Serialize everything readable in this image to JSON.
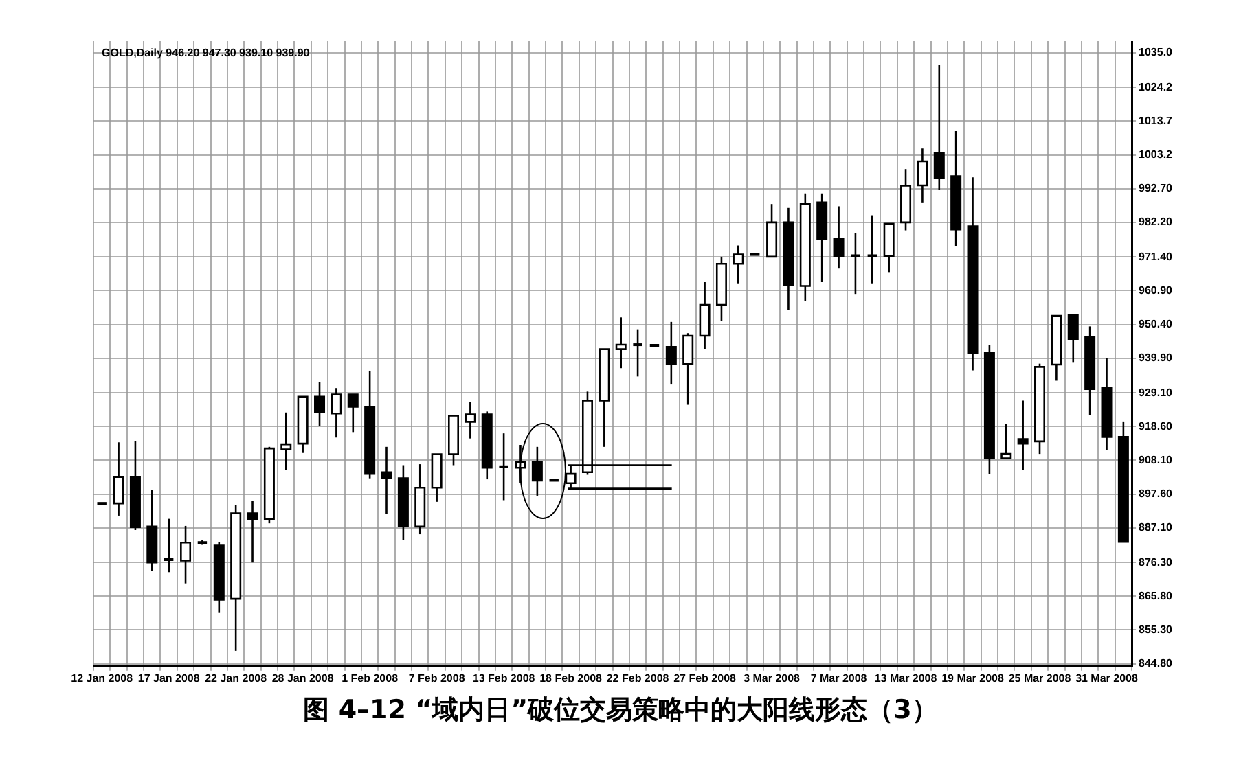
{
  "chart_data": {
    "type": "candlestick",
    "title": "图 4–12 “域内日”破位交易策略中的大阳线形态（3）",
    "subtitle": "GOLD,Daily 946.20 947.30 939.10 939.90",
    "categories": [
      "12 Jan 2008",
      null,
      null,
      null,
      "17 Jan 2008",
      null,
      null,
      null,
      "22 Jan 2008",
      null,
      null,
      null,
      "28 Jan 2008",
      null,
      null,
      null,
      "1 Feb 2008",
      null,
      null,
      null,
      "7 Feb 2008",
      null,
      null,
      null,
      "13 Feb 2008",
      null,
      null,
      null,
      "18 Feb 2008",
      null,
      null,
      null,
      "22 Feb 2008",
      null,
      null,
      null,
      "27 Feb 2008",
      null,
      null,
      null,
      "3 Mar 2008",
      null,
      null,
      null,
      "7 Mar 2008",
      null,
      null,
      null,
      "13 Mar 2008",
      null,
      null,
      null,
      "19 Mar 2008",
      null,
      null,
      null,
      "25 Mar 2008",
      null,
      null,
      null,
      "31 Mar 2008",
      null
    ],
    "ohlc": [
      [
        894.7,
        894.7,
        894.7,
        894.7
      ],
      [
        894.7,
        913.7,
        890.9,
        902.9
      ],
      [
        902.9,
        914.0,
        886.4,
        887.3
      ],
      [
        887.5,
        898.9,
        873.7,
        876.3
      ],
      [
        877.2,
        889.9,
        873.3,
        877.2
      ],
      [
        876.9,
        887.7,
        869.8,
        882.5
      ],
      [
        882.5,
        883.2,
        881.8,
        882.5
      ],
      [
        881.6,
        882.7,
        860.6,
        864.7
      ],
      [
        865.0,
        894.3,
        848.8,
        891.6
      ],
      [
        891.6,
        895.4,
        876.3,
        889.9
      ],
      [
        889.9,
        912.3,
        888.5,
        911.8
      ],
      [
        911.5,
        923.0,
        905.0,
        913.1
      ],
      [
        913.3,
        927.9,
        910.4,
        927.9
      ],
      [
        927.9,
        932.4,
        918.7,
        923.0
      ],
      [
        922.7,
        930.6,
        915.2,
        928.6
      ],
      [
        928.6,
        928.6,
        916.9,
        924.8
      ],
      [
        924.8,
        936.0,
        902.5,
        903.9
      ],
      [
        904.4,
        912.3,
        891.5,
        902.7
      ],
      [
        902.5,
        906.6,
        883.4,
        887.6
      ],
      [
        887.5,
        906.9,
        885.1,
        899.6
      ],
      [
        899.6,
        910.0,
        895.2,
        910.0
      ],
      [
        910.0,
        922.0,
        906.6,
        922.0
      ],
      [
        920.1,
        926.2,
        914.9,
        922.4
      ],
      [
        922.4,
        923.3,
        902.2,
        905.8
      ],
      [
        906.1,
        916.5,
        895.7,
        906.1
      ],
      [
        905.8,
        912.9,
        901.0,
        907.5
      ],
      [
        907.5,
        912.3,
        897.1,
        901.8
      ],
      [
        901.9,
        901.9,
        901.9,
        901.9
      ],
      [
        901.0,
        906.6,
        899.3,
        903.9
      ],
      [
        904.4,
        929.5,
        903.6,
        926.7
      ],
      [
        926.7,
        942.7,
        912.3,
        942.7
      ],
      [
        942.7,
        952.6,
        936.8,
        944.1
      ],
      [
        944.1,
        948.9,
        934.2,
        944.1
      ],
      [
        943.9,
        943.9,
        943.9,
        943.9
      ],
      [
        943.4,
        951.2,
        931.7,
        938.1
      ],
      [
        938.1,
        947.7,
        925.4,
        946.9
      ],
      [
        946.9,
        963.7,
        942.7,
        956.5
      ],
      [
        956.5,
        971.5,
        951.4,
        969.3
      ],
      [
        969.3,
        975.0,
        963.2,
        972.2
      ],
      [
        972.2,
        972.2,
        972.2,
        972.2
      ],
      [
        971.5,
        987.9,
        971.5,
        982.2
      ],
      [
        982.2,
        986.7,
        954.8,
        962.7
      ],
      [
        962.4,
        991.2,
        957.7,
        987.9
      ],
      [
        988.4,
        991.2,
        963.7,
        977.1
      ],
      [
        977.1,
        987.2,
        967.8,
        971.6
      ],
      [
        971.8,
        978.9,
        959.9,
        971.8
      ],
      [
        971.8,
        984.4,
        963.2,
        971.8
      ],
      [
        971.6,
        981.8,
        966.7,
        981.8
      ],
      [
        982.2,
        998.8,
        979.7,
        993.6
      ],
      [
        993.7,
        1005.2,
        988.4,
        1001.2
      ],
      [
        1003.8,
        1031.2,
        992.3,
        995.9
      ],
      [
        996.6,
        1010.6,
        974.7,
        980.0
      ],
      [
        981.0,
        996.2,
        936.1,
        941.4
      ],
      [
        941.5,
        944.0,
        903.9,
        908.7
      ],
      [
        908.7,
        919.5,
        908.7,
        910.1
      ],
      [
        914.7,
        926.7,
        905.0,
        913.3
      ],
      [
        914.0,
        938.2,
        910.1,
        937.2
      ],
      [
        937.9,
        953.1,
        932.9,
        953.1
      ],
      [
        953.4,
        953.4,
        938.7,
        945.9
      ],
      [
        946.4,
        949.8,
        922.1,
        930.3
      ],
      [
        930.6,
        939.9,
        911.3,
        915.4
      ],
      [
        915.4,
        920.2,
        882.7,
        882.7
      ]
    ],
    "ylim": [
      843.9,
      1038.6
    ],
    "yticks": [
      {
        "value": 844.8,
        "label": "844.80"
      },
      {
        "value": 855.3,
        "label": "855.30"
      },
      {
        "value": 865.8,
        "label": "865.80"
      },
      {
        "value": 876.3,
        "label": "876.30"
      },
      {
        "value": 887.1,
        "label": "887.10"
      },
      {
        "value": 897.6,
        "label": "897.60"
      },
      {
        "value": 908.1,
        "label": "908.10"
      },
      {
        "value": 918.6,
        "label": "918.60"
      },
      {
        "value": 929.1,
        "label": "929.10"
      },
      {
        "value": 939.9,
        "label": "939.90"
      },
      {
        "value": 950.4,
        "label": "950.40"
      },
      {
        "value": 960.9,
        "label": "960.90"
      },
      {
        "value": 971.4,
        "label": "971.40"
      },
      {
        "value": 982.2,
        "label": "982.20"
      },
      {
        "value": 992.7,
        "label": "992.70"
      },
      {
        "value": 1003.2,
        "label": "1003.2"
      },
      {
        "value": 1013.7,
        "label": "1013.7"
      },
      {
        "value": 1024.2,
        "label": "1024.2"
      },
      {
        "value": 1035.0,
        "label": "1035.0"
      }
    ],
    "ref_lines": [
      {
        "axis": "y",
        "value": 906.6
      },
      {
        "axis": "y",
        "value": 899.3
      }
    ],
    "grid": true
  }
}
